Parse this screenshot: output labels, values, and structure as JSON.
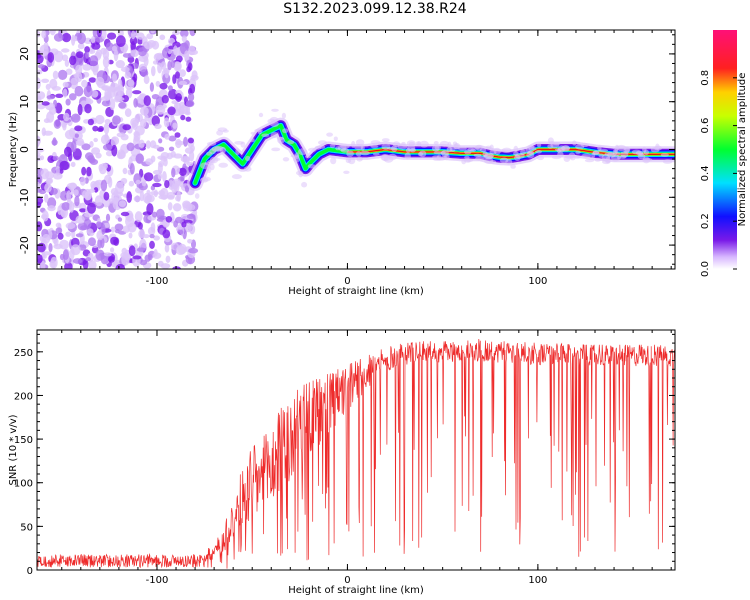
{
  "title": "S132.2023.099.12.38.R24",
  "colors": {
    "snr_line": "#ee2b2b",
    "ridge_core": "#e21a1a",
    "noise": "#7a1ae8",
    "axis": "#000000"
  },
  "chart_data": [
    {
      "type": "heatmap",
      "title": "S132.2023.099.12.38.R24",
      "xlabel": "Height of straight line (km)",
      "ylabel": "Frequency (Hz)",
      "xlim": [
        -163,
        172
      ],
      "ylim": [
        -25,
        25
      ],
      "xticks": [
        -100,
        0,
        100
      ],
      "xticklabels": [
        "-100",
        "0",
        "100"
      ],
      "yticks": [
        -20,
        -10,
        0,
        10,
        20
      ],
      "yticklabels": [
        "-20",
        "-10",
        "0",
        "10",
        "20"
      ],
      "noise_region_x": [
        -163,
        -80
      ],
      "ridge": {
        "x": [
          -80,
          -75,
          -70,
          -65,
          -60,
          -55,
          -50,
          -45,
          -40,
          -35,
          -32,
          -28,
          -25,
          -22,
          -20,
          -15,
          -10,
          0,
          10,
          20,
          30,
          40,
          50,
          60,
          70,
          75,
          80,
          85,
          90,
          95,
          100,
          110,
          120,
          130,
          140,
          150,
          160,
          172
        ],
        "y": [
          -7,
          -2,
          0,
          1,
          -1,
          -3,
          0,
          3,
          4,
          5,
          2,
          1,
          -1,
          -4,
          -3,
          -1,
          0,
          -0.5,
          -0.5,
          0,
          -0.5,
          -0.5,
          -0.5,
          -0.8,
          -0.8,
          -1.3,
          -1.6,
          -1.7,
          -1.4,
          -1.0,
          0,
          0,
          0,
          -0.6,
          -1.0,
          -1.0,
          -1.0,
          -1.0
        ]
      },
      "colorbar": {
        "label": "Normalized spectral amplitude",
        "range": [
          0,
          1
        ],
        "ticks": [
          0.0,
          0.2,
          0.4,
          0.6,
          0.8
        ],
        "ticklabels": [
          "0.0",
          "0.2",
          "0.4",
          "0.6",
          "0.8"
        ]
      }
    },
    {
      "type": "line",
      "xlabel": "Height of straight line (km)",
      "ylabel": "SNR (10 * v/v)",
      "xlim": [
        -163,
        172
      ],
      "ylim": [
        0,
        275
      ],
      "xticks": [
        -100,
        0,
        100
      ],
      "xticklabels": [
        "-100",
        "0",
        "100"
      ],
      "yticks": [
        0,
        50,
        100,
        150,
        200,
        250
      ],
      "yticklabels": [
        "0",
        "50",
        "100",
        "150",
        "200",
        "250"
      ],
      "envelope": {
        "x": [
          -163,
          -75,
          -70,
          -65,
          -60,
          -55,
          -50,
          -45,
          -40,
          -35,
          -30,
          -25,
          -20,
          -15,
          -10,
          -5,
          0,
          5,
          10,
          15,
          20,
          25,
          30,
          40,
          50,
          60,
          70,
          80,
          90,
          100,
          110,
          120,
          130,
          140,
          150,
          160,
          172
        ],
        "baseline": [
          9,
          9,
          12,
          20,
          35,
          45,
          50,
          60,
          70,
          85,
          95,
          105,
          120,
          140,
          150,
          165,
          180,
          195,
          205,
          215,
          225,
          232,
          235,
          237,
          238,
          238,
          238,
          237,
          236,
          235,
          234,
          234,
          234,
          233,
          233,
          233,
          232
        ],
        "peak": [
          20,
          22,
          30,
          50,
          90,
          120,
          140,
          150,
          165,
          185,
          200,
          210,
          215,
          220,
          225,
          230,
          235,
          240,
          245,
          250,
          255,
          258,
          260,
          262,
          262,
          262,
          265,
          262,
          262,
          260,
          260,
          258,
          258,
          258,
          258,
          258,
          258
        ]
      }
    }
  ]
}
